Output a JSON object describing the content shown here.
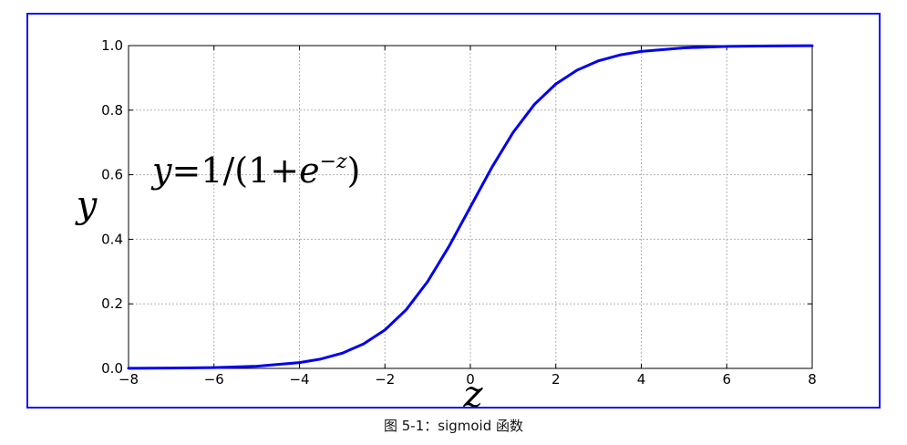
{
  "caption": "图 5-1：sigmoid 函数",
  "colors": {
    "frame": "#1010ff",
    "curve": "#0000ee",
    "grid": "#b0b0b0"
  },
  "chart_data": {
    "type": "line",
    "title": "",
    "xlabel": "z",
    "ylabel": "y",
    "annotation": {
      "y_var": "y",
      "eq_lhs": "=1/(1+",
      "base": "e",
      "exp_sign": "−",
      "exp_var": "z",
      "close": ")"
    },
    "xlim": [
      -8,
      8
    ],
    "ylim": [
      0.0,
      1.0
    ],
    "grid": true,
    "legend": "none",
    "x_ticks": [
      {
        "value": -8,
        "label": "−8"
      },
      {
        "value": -6,
        "label": "−6"
      },
      {
        "value": -4,
        "label": "−4"
      },
      {
        "value": -2,
        "label": "−2"
      },
      {
        "value": 0,
        "label": "0"
      },
      {
        "value": 2,
        "label": "2"
      },
      {
        "value": 4,
        "label": "4"
      },
      {
        "value": 6,
        "label": "6"
      },
      {
        "value": 8,
        "label": "8"
      }
    ],
    "y_ticks": [
      {
        "value": 0.0,
        "label": "0.0"
      },
      {
        "value": 0.2,
        "label": "0.2"
      },
      {
        "value": 0.4,
        "label": "0.4"
      },
      {
        "value": 0.6,
        "label": "0.6"
      },
      {
        "value": 0.8,
        "label": "0.8"
      },
      {
        "value": 1.0,
        "label": "1.0"
      }
    ],
    "series": [
      {
        "x": [
          -8,
          -7,
          -6,
          -5,
          -4,
          -3.5,
          -3,
          -2.5,
          -2,
          -1.5,
          -1,
          -0.5,
          0,
          0.5,
          1,
          1.5,
          2,
          2.5,
          3,
          3.5,
          4,
          5,
          6,
          7,
          8
        ],
        "values": [
          0.0003,
          0.0009,
          0.0025,
          0.0067,
          0.018,
          0.029,
          0.047,
          0.076,
          0.119,
          0.182,
          0.269,
          0.378,
          0.5,
          0.622,
          0.731,
          0.818,
          0.881,
          0.924,
          0.953,
          0.971,
          0.982,
          0.993,
          0.9975,
          0.9991,
          0.9997
        ]
      }
    ]
  }
}
